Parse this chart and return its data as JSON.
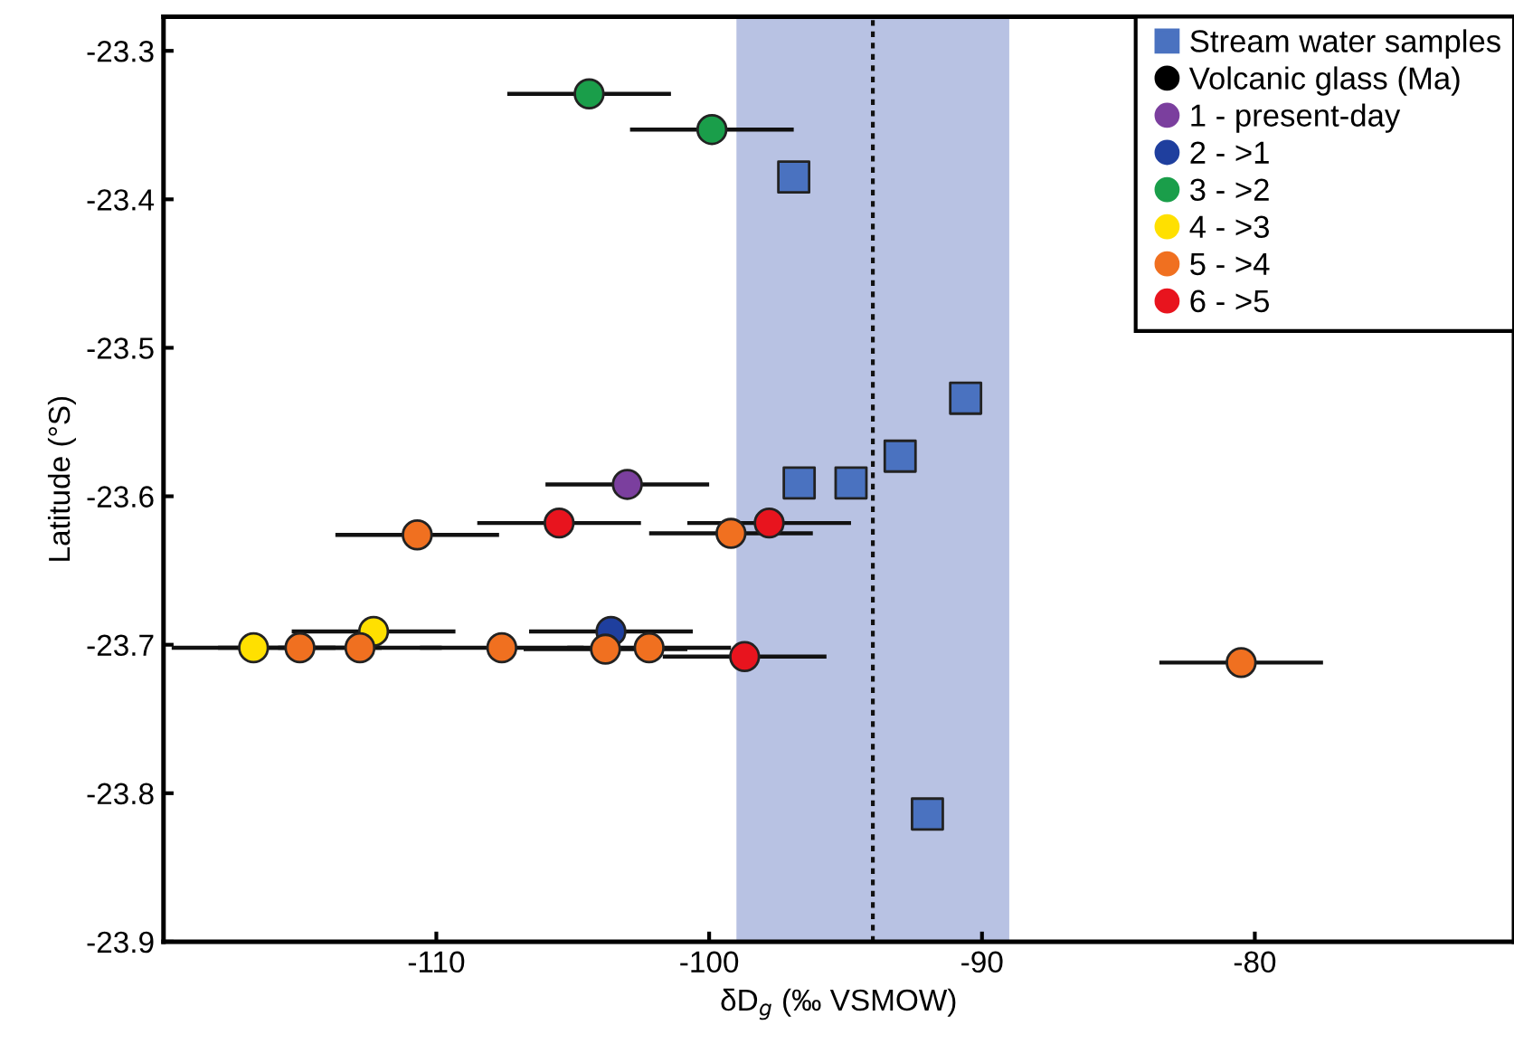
{
  "chart_data": {
    "type": "scatter",
    "xlabel": "δD$_{g}$ (‰ VSMOW)",
    "ylabel": "Latitude (°S)",
    "xlim": [
      -120,
      -70.5
    ],
    "ylim": [
      -23.9,
      -23.277
    ],
    "xticks": [
      -110,
      -100,
      -90,
      -80
    ],
    "yticks": [
      -23.3,
      -23.4,
      -23.5,
      -23.6,
      -23.7,
      -23.8,
      -23.9
    ],
    "grid": false,
    "legend": "top right",
    "bands": [
      {
        "axis": "x",
        "from": -99,
        "to": -89,
        "color": "#b8c2e3"
      }
    ],
    "ref_lines": [
      {
        "axis": "x",
        "value": -94,
        "color": "#111111",
        "line_style": "dotted"
      }
    ],
    "series": [
      {
        "name": "Stream water samples",
        "color": "#4a72c0",
        "marker": "square",
        "x": [
          -96.9,
          -90.6,
          -93.0,
          -96.7,
          -94.8,
          -92.0
        ],
        "values": [
          -23.385,
          -23.534,
          -23.573,
          -23.591,
          -23.591,
          -23.814
        ]
      },
      {
        "name": "Volcanic glass (Ma)",
        "color": "#000000",
        "marker": "circle"
      },
      {
        "name": "1 - present-day",
        "color": "#7b3f9e",
        "marker": "circle",
        "x": [
          -103.0
        ],
        "values": [
          -23.592
        ],
        "xerrors": [
          3
        ]
      },
      {
        "name": "2 - >1",
        "color": "#1f3f9e",
        "marker": "circle",
        "x": [
          -103.6
        ],
        "values": [
          -23.691
        ],
        "xerrors": [
          3
        ]
      },
      {
        "name": "3 - >2",
        "color": "#1a9e4a",
        "marker": "circle",
        "x": [
          -104.4,
          -99.9
        ],
        "values": [
          -23.329,
          -23.353
        ],
        "xerrors": [
          3,
          3
        ]
      },
      {
        "name": "4 - >3",
        "color": "#ffe000",
        "marker": "circle",
        "x": [
          -116.7,
          -112.3
        ],
        "values": [
          -23.702,
          -23.691
        ],
        "xerrors": [
          3,
          3
        ]
      },
      {
        "name": "5 - >4",
        "color": "#f07020",
        "marker": "circle",
        "x": [
          -110.7,
          -99.2,
          -115.0,
          -112.8,
          -107.6,
          -103.8,
          -102.2,
          -80.5
        ],
        "values": [
          -23.626,
          -23.625,
          -23.702,
          -23.702,
          -23.702,
          -23.703,
          -23.702,
          -23.712
        ],
        "xerrors": [
          3,
          3,
          3,
          3,
          3,
          3,
          3,
          3
        ]
      },
      {
        "name": "6 - >5",
        "color": "#e8141e",
        "marker": "circle",
        "x": [
          -105.5,
          -97.8,
          -98.7
        ],
        "values": [
          -23.618,
          -23.618,
          -23.708
        ],
        "xerrors": [
          3,
          3,
          3
        ]
      }
    ]
  }
}
